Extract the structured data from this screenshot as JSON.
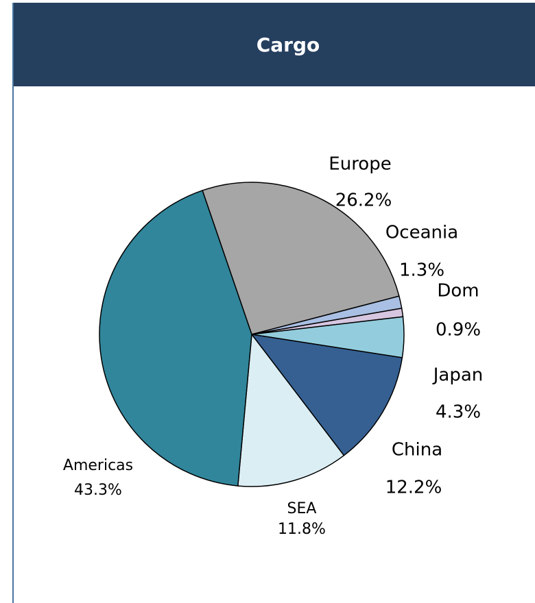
{
  "chart_data": {
    "type": "pie",
    "title": "Cargo",
    "categories": [
      "Europe",
      "Oceania",
      "Dom",
      "Japan",
      "China",
      "SEA",
      "Americas"
    ],
    "values": [
      26.2,
      1.3,
      0.9,
      4.3,
      12.2,
      11.8,
      43.3
    ],
    "value_labels": [
      "26.2%",
      "1.3%",
      "0.9%",
      "4.3%",
      "12.2%",
      "11.8%",
      "43.3%"
    ],
    "colors": [
      "#a6a6a6",
      "#a9bfe3",
      "#d6c6e0",
      "#93cddd",
      "#366092",
      "#dbeef4",
      "#31869b"
    ]
  }
}
